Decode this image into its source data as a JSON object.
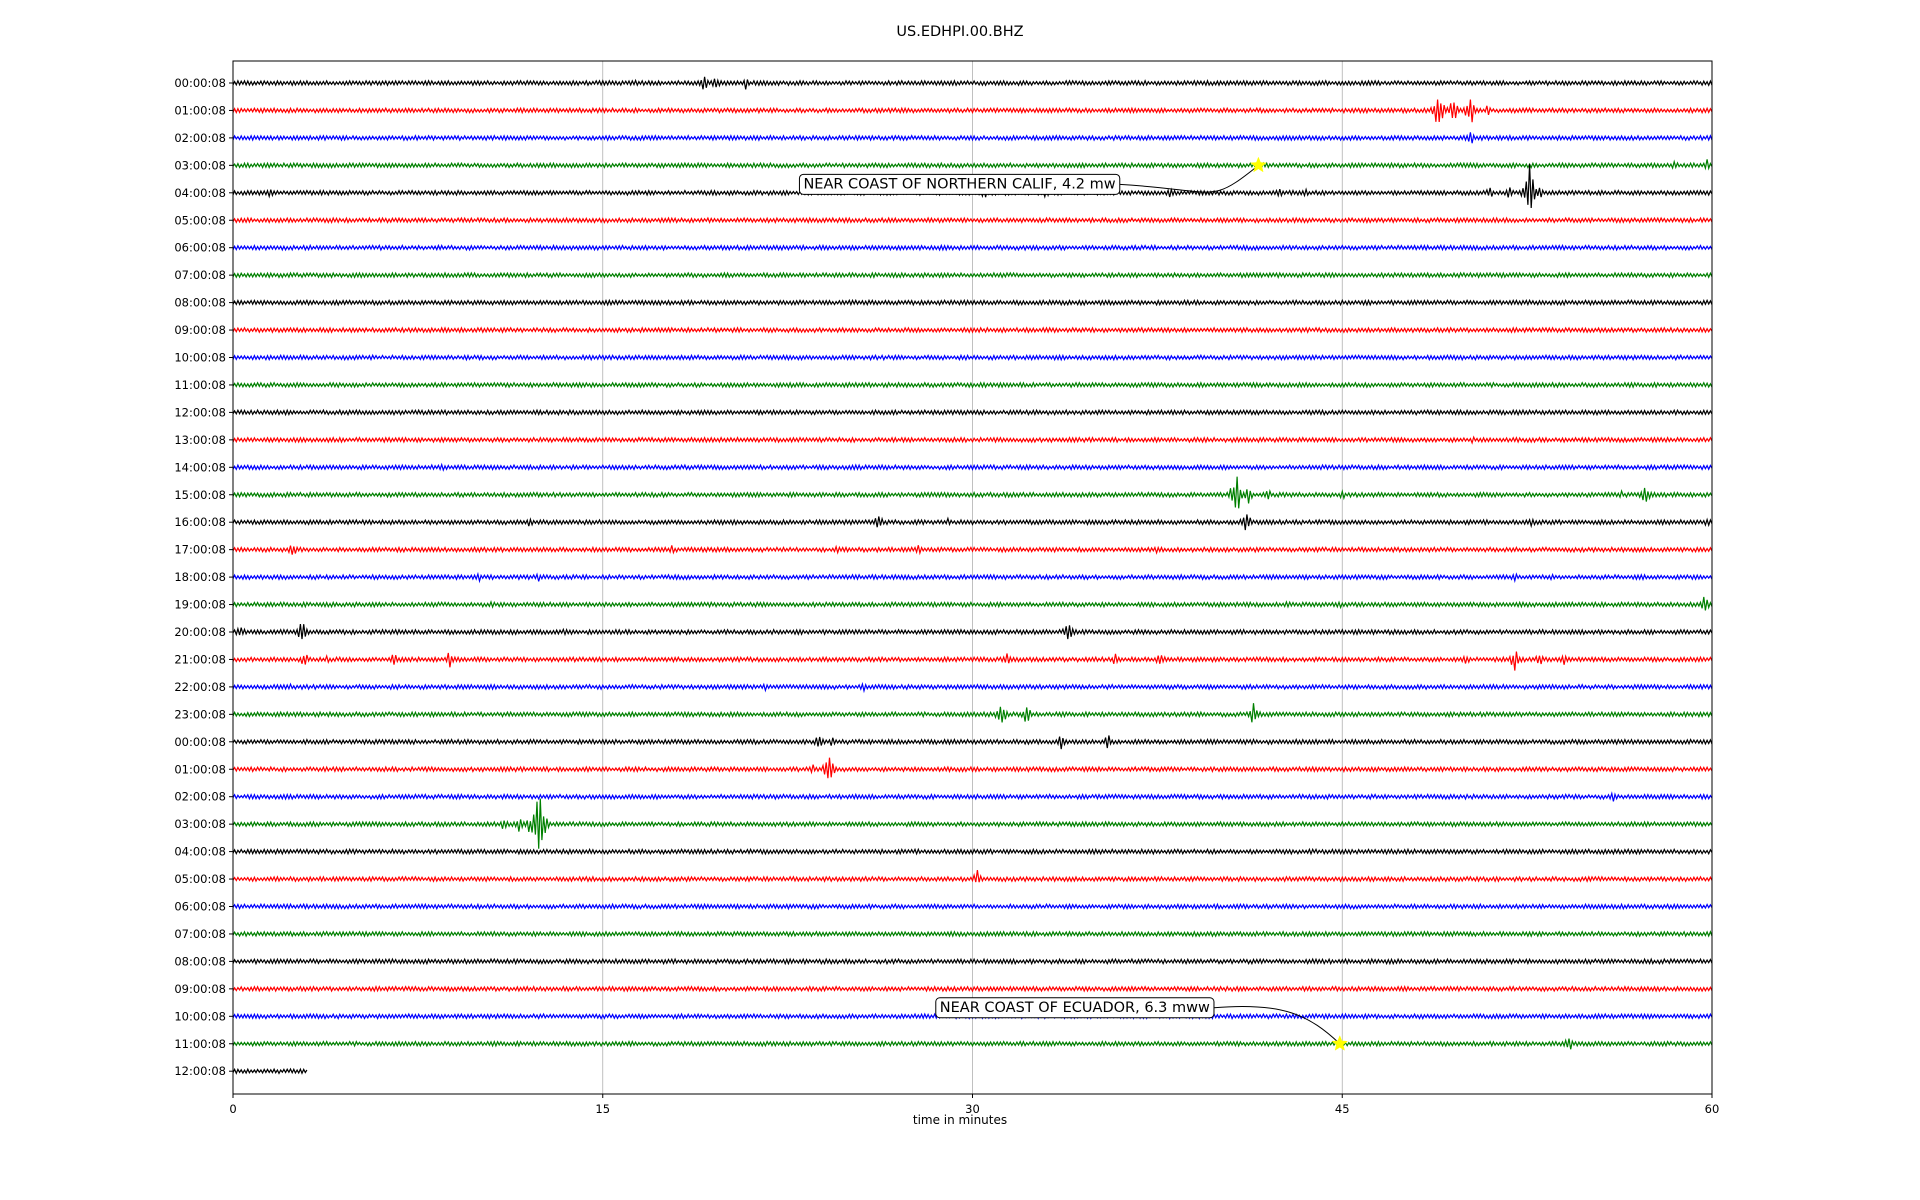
{
  "chart_data": {
    "type": "line",
    "title": "US.EDHPI.00.BHZ",
    "xlabel": "time in minutes",
    "ylabel": "",
    "xlim": [
      0,
      60
    ],
    "x_ticks": [
      0,
      15,
      30,
      45,
      60
    ],
    "grid": "vertical",
    "row_labels": [
      "00:00:08",
      "01:00:08",
      "02:00:08",
      "03:00:08",
      "04:00:08",
      "05:00:08",
      "06:00:08",
      "07:00:08",
      "08:00:08",
      "09:00:08",
      "10:00:08",
      "11:00:08",
      "12:00:08",
      "13:00:08",
      "14:00:08",
      "15:00:08",
      "16:00:08",
      "17:00:08",
      "18:00:08",
      "19:00:08",
      "20:00:08",
      "21:00:08",
      "22:00:08",
      "23:00:08",
      "00:00:08",
      "01:00:08",
      "02:00:08",
      "03:00:08",
      "04:00:08",
      "05:00:08",
      "06:00:08",
      "07:00:08",
      "08:00:08",
      "09:00:08",
      "10:00:08",
      "11:00:08",
      "12:00:08"
    ],
    "colors": [
      "#000000",
      "#ff0000",
      "#0000ff",
      "#008000"
    ],
    "last_row_end_minute": 3,
    "events": [
      {
        "row": 0,
        "bursts": [
          {
            "t": 9.5,
            "a": 3
          },
          {
            "t": 16.4,
            "a": 4
          },
          {
            "t": 19.1,
            "a": 10
          },
          {
            "t": 19.6,
            "a": 7
          },
          {
            "t": 20.8,
            "a": 7
          }
        ]
      },
      {
        "row": 1,
        "bursts": [
          {
            "t": 48.9,
            "a": 24
          },
          {
            "t": 49.5,
            "a": 14
          },
          {
            "t": 50.2,
            "a": 18
          },
          {
            "t": 50.9,
            "a": 6
          }
        ]
      },
      {
        "row": 2,
        "bursts": [
          {
            "t": 50.2,
            "a": 8
          }
        ]
      },
      {
        "row": 3,
        "bursts": [
          {
            "t": 58.5,
            "a": 5
          },
          {
            "t": 59.8,
            "a": 6
          }
        ]
      },
      {
        "row": 4,
        "bursts": [
          {
            "t": 0.6,
            "a": 3
          },
          {
            "t": 1.5,
            "a": 5
          },
          {
            "t": 30.5,
            "a": 7
          },
          {
            "t": 33.0,
            "a": 6
          },
          {
            "t": 38.0,
            "a": 5
          },
          {
            "t": 42.5,
            "a": 6
          },
          {
            "t": 43.5,
            "a": 6
          },
          {
            "t": 51.0,
            "a": 7
          },
          {
            "t": 51.8,
            "a": 7
          },
          {
            "t": 52.6,
            "a": 32
          },
          {
            "t": 53.0,
            "a": 8
          }
        ]
      },
      {
        "row": 8,
        "bursts": [
          {
            "t": 28.2,
            "a": 4
          }
        ]
      },
      {
        "row": 13,
        "bursts": [
          {
            "t": 50.3,
            "a": 4
          }
        ]
      },
      {
        "row": 14,
        "bursts": [
          {
            "t": 8.5,
            "a": 5
          }
        ]
      },
      {
        "row": 15,
        "bursts": [
          {
            "t": 40.5,
            "a": 9
          },
          {
            "t": 40.7,
            "a": 28
          },
          {
            "t": 41.2,
            "a": 9
          },
          {
            "t": 42.0,
            "a": 6
          },
          {
            "t": 45.0,
            "a": 5
          },
          {
            "t": 56.3,
            "a": 5
          },
          {
            "t": 57.3,
            "a": 10
          }
        ]
      },
      {
        "row": 16,
        "bursts": [
          {
            "t": 12.0,
            "a": 6
          },
          {
            "t": 26.2,
            "a": 9
          },
          {
            "t": 29.0,
            "a": 4
          },
          {
            "t": 41.1,
            "a": 12
          },
          {
            "t": 52.7,
            "a": 5
          },
          {
            "t": 59.8,
            "a": 5
          }
        ]
      },
      {
        "row": 17,
        "bursts": [
          {
            "t": 2.4,
            "a": 9
          },
          {
            "t": 17.8,
            "a": 5
          },
          {
            "t": 24.5,
            "a": 5
          },
          {
            "t": 27.8,
            "a": 6
          },
          {
            "t": 37.5,
            "a": 4
          }
        ]
      },
      {
        "row": 18,
        "bursts": [
          {
            "t": 10.0,
            "a": 5
          },
          {
            "t": 12.4,
            "a": 5
          },
          {
            "t": 52.0,
            "a": 5
          },
          {
            "t": 53.5,
            "a": 6
          },
          {
            "t": 57.2,
            "a": 4
          }
        ]
      },
      {
        "row": 19,
        "bursts": [
          {
            "t": 10.5,
            "a": 5
          },
          {
            "t": 12.3,
            "a": 4
          },
          {
            "t": 42.8,
            "a": 4
          },
          {
            "t": 44.9,
            "a": 5
          },
          {
            "t": 59.7,
            "a": 10
          }
        ]
      },
      {
        "row": 20,
        "bursts": [
          {
            "t": 0.3,
            "a": 8
          },
          {
            "t": 2.8,
            "a": 12
          },
          {
            "t": 13.5,
            "a": 5
          },
          {
            "t": 33.9,
            "a": 12
          }
        ]
      },
      {
        "row": 21,
        "bursts": [
          {
            "t": 2.9,
            "a": 9
          },
          {
            "t": 3.8,
            "a": 5
          },
          {
            "t": 6.5,
            "a": 8
          },
          {
            "t": 8.8,
            "a": 10
          },
          {
            "t": 31.4,
            "a": 8
          },
          {
            "t": 35.8,
            "a": 7
          },
          {
            "t": 37.6,
            "a": 9
          },
          {
            "t": 50.0,
            "a": 6
          },
          {
            "t": 52.0,
            "a": 12
          },
          {
            "t": 53.0,
            "a": 7
          },
          {
            "t": 54.0,
            "a": 6
          }
        ]
      },
      {
        "row": 22,
        "bursts": [
          {
            "t": 2.3,
            "a": 5
          },
          {
            "t": 21.6,
            "a": 4
          },
          {
            "t": 25.6,
            "a": 5
          },
          {
            "t": 31.9,
            "a": 4
          }
        ]
      },
      {
        "row": 23,
        "bursts": [
          {
            "t": 31.2,
            "a": 15
          },
          {
            "t": 32.2,
            "a": 11
          },
          {
            "t": 41.4,
            "a": 12
          },
          {
            "t": 59.5,
            "a": 4
          }
        ]
      },
      {
        "row": 24,
        "bursts": [
          {
            "t": 23.8,
            "a": 10
          },
          {
            "t": 24.3,
            "a": 6
          },
          {
            "t": 33.6,
            "a": 9
          },
          {
            "t": 35.5,
            "a": 8
          }
        ]
      },
      {
        "row": 25,
        "bursts": [
          {
            "t": 23.5,
            "a": 6
          },
          {
            "t": 24.1,
            "a": 10
          },
          {
            "t": 24.2,
            "a": 14
          }
        ]
      },
      {
        "row": 26,
        "bursts": [
          {
            "t": 56.0,
            "a": 7
          }
        ]
      },
      {
        "row": 27,
        "bursts": [
          {
            "t": 11.0,
            "a": 7
          },
          {
            "t": 11.6,
            "a": 8
          },
          {
            "t": 12.0,
            "a": 8
          },
          {
            "t": 12.4,
            "a": 46
          }
        ]
      },
      {
        "row": 28,
        "bursts": [
          {
            "t": 23.5,
            "a": 4
          }
        ]
      },
      {
        "row": 29,
        "bursts": [
          {
            "t": 30.2,
            "a": 9
          }
        ]
      },
      {
        "row": 35,
        "bursts": [
          {
            "t": 54.2,
            "a": 9
          }
        ]
      }
    ],
    "annotations": [
      {
        "text": "NEAR COAST OF NORTHERN CALIF, 4.2 mw",
        "row": 3,
        "time": 41.6
      },
      {
        "text": "NEAR COAST OF ECUADOR, 6.3 mww",
        "row": 35,
        "time": 44.9
      }
    ]
  }
}
